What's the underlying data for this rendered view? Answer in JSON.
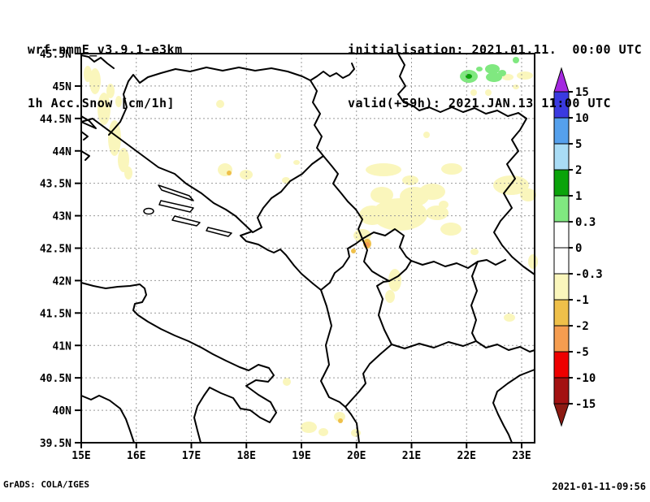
{
  "header": {
    "model": "wrf-nmmE_v3.9.1-e3km",
    "variable": "1h Acc.Snow [cm/1h]",
    "initialisation": "initialisation: 2021.01.11.  00:00 UTC",
    "valid": "valid(+59h): 2021.JAN.13 11:00 UTC"
  },
  "footer": {
    "left": "GrADS: COLA/IGES",
    "right": "2021-01-11-09:56"
  },
  "palette": {
    "purple": "#A428E0",
    "blue": "#3A3AE0",
    "medium_blue": "#55A0EC",
    "light_blue": "#A9DCF5",
    "dark_green": "#0AA30A",
    "light_green": "#80E880",
    "white": "#FFFFFF",
    "pale_yellow": "#FAF6BC",
    "gold": "#EFC04A",
    "orange": "#F59D50",
    "red": "#EE0000",
    "dark_red": "#A31212",
    "darkest_red": "#8C1A12",
    "grid_gray": "#999999",
    "map_line_black": "#000000"
  },
  "chart_data": {
    "type": "map-filled-contours",
    "title": "1h Acc.Snow [cm/1h]",
    "model": "wrf-nmmE_v3.9.1-e3km",
    "lat_ticks": [
      "45.5N",
      "45N",
      "44.5N",
      "44N",
      "43.5N",
      "43N",
      "42.5N",
      "42N",
      "41.5N",
      "41N",
      "40.5N",
      "40N",
      "39.5N"
    ],
    "lon_ticks": [
      "15E",
      "16E",
      "17E",
      "18E",
      "19E",
      "20E",
      "21E",
      "22E",
      "23E"
    ],
    "lat_range": [
      "39.5N",
      "45.5N"
    ],
    "lon_range": [
      "15E",
      "23E"
    ],
    "grid": {
      "lon_step_deg": 1,
      "lat_step_deg": 0.5,
      "style": "dotted"
    },
    "colorbar": {
      "levels": [
        "15",
        "10",
        "5",
        "2",
        "1",
        "0.3",
        "0",
        "-0.3",
        "-1",
        "-2",
        "-5",
        "-10",
        "-15"
      ],
      "band_colors_top_to_bottom": [
        "#A428E0",
        "#3A3AE0",
        "#55A0EC",
        "#A9DCF5",
        "#0AA30A",
        "#80E880",
        "#FFFFFF",
        "#FFFFFF",
        "#FAF6BC",
        "#EFC04A",
        "#F59D50",
        "#EE0000",
        "#A31212",
        "#8C1A12"
      ],
      "units": "cm/1h"
    }
  }
}
